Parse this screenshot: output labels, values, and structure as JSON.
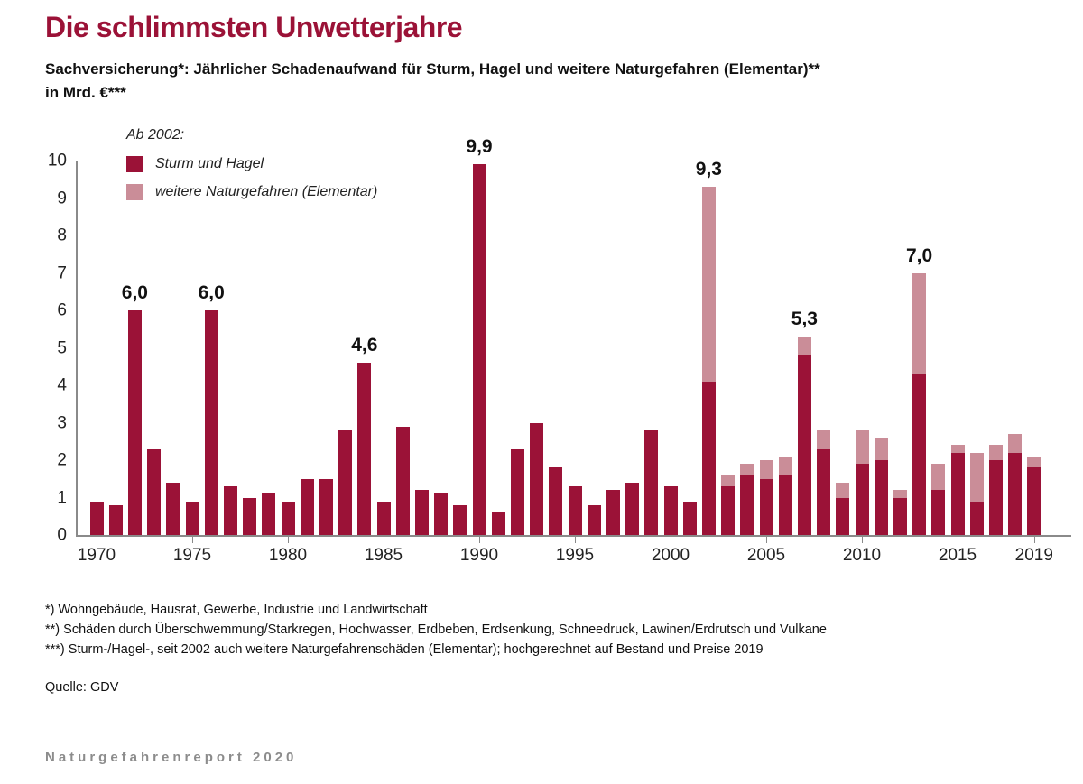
{
  "header": {
    "title": "Die schlimmsten Unwetterjahre",
    "subtitle_line1": "Sachversicherung*: Jährlicher Schadenaufwand für Sturm, Hagel und weitere Naturgefahren (Elementar)**",
    "subtitle_line2": "in Mrd. €***"
  },
  "legend": {
    "heading": "Ab 2002:",
    "items": [
      {
        "label": "Sturm und Hagel",
        "color": "#9b1237"
      },
      {
        "label": "weitere Naturgefahren (Elementar)",
        "color": "#ca8d98"
      }
    ]
  },
  "chart_data": {
    "type": "bar",
    "stacked": true,
    "title": "Die schlimmsten Unwetterjahre",
    "ylabel": "Mrd. €",
    "ylim": [
      0,
      10
    ],
    "yticks": [
      0,
      1,
      2,
      3,
      4,
      5,
      6,
      7,
      8,
      9,
      10
    ],
    "grid": false,
    "legend_position": "top-left",
    "x": [
      1970,
      1971,
      1972,
      1973,
      1974,
      1975,
      1976,
      1977,
      1978,
      1979,
      1980,
      1981,
      1982,
      1983,
      1984,
      1985,
      1986,
      1987,
      1988,
      1989,
      1990,
      1991,
      1992,
      1993,
      1994,
      1995,
      1996,
      1997,
      1998,
      1999,
      2000,
      2001,
      2002,
      2003,
      2004,
      2005,
      2006,
      2007,
      2008,
      2009,
      2010,
      2011,
      2012,
      2013,
      2014,
      2015,
      2016,
      2017,
      2018,
      2019
    ],
    "xticks": [
      1970,
      1975,
      1980,
      1985,
      1990,
      1995,
      2000,
      2005,
      2010,
      2015,
      2019
    ],
    "series": [
      {
        "name": "Sturm und Hagel",
        "color": "#9b1237",
        "values": [
          0.9,
          0.8,
          6.0,
          2.3,
          1.4,
          0.9,
          6.0,
          1.3,
          1.0,
          1.1,
          0.9,
          1.5,
          1.5,
          2.8,
          4.6,
          0.9,
          2.9,
          1.2,
          1.1,
          0.8,
          9.9,
          0.6,
          2.3,
          3.0,
          1.8,
          1.3,
          0.8,
          1.2,
          1.4,
          2.8,
          1.3,
          0.9,
          4.1,
          1.3,
          1.6,
          1.5,
          1.6,
          4.8,
          2.3,
          1.0,
          1.9,
          2.0,
          1.0,
          4.3,
          1.2,
          2.2,
          0.9,
          2.0,
          2.2,
          1.8
        ]
      },
      {
        "name": "weitere Naturgefahren (Elementar)",
        "color": "#ca8d98",
        "values": [
          0,
          0,
          0,
          0,
          0,
          0,
          0,
          0,
          0,
          0,
          0,
          0,
          0,
          0,
          0,
          0,
          0,
          0,
          0,
          0,
          0,
          0,
          0,
          0,
          0,
          0,
          0,
          0,
          0,
          0,
          0,
          0,
          5.2,
          0.3,
          0.3,
          0.5,
          0.5,
          0.5,
          0.5,
          0.4,
          0.9,
          0.6,
          0.2,
          2.7,
          0.7,
          0.2,
          1.3,
          0.4,
          0.5,
          0.3
        ]
      }
    ],
    "annotations": [
      {
        "year": 1972,
        "label": "6,0"
      },
      {
        "year": 1976,
        "label": "6,0"
      },
      {
        "year": 1984,
        "label": "4,6"
      },
      {
        "year": 1990,
        "label": "9,9"
      },
      {
        "year": 2002,
        "label": "9,3"
      },
      {
        "year": 2007,
        "label": "5,3"
      },
      {
        "year": 2013,
        "label": "7,0"
      }
    ]
  },
  "footnotes": {
    "line1": "*) Wohngebäude, Hausrat, Gewerbe, Industrie und Landwirtschaft",
    "line2": "**) Schäden durch Überschwemmung/Starkregen, Hochwasser, Erdbeben, Erdsenkung, Schneedruck, Lawinen/Erdrutsch und Vulkane",
    "line3": "***) Sturm-/Hagel-, seit 2002 auch weitere Naturgefahrenschäden (Elementar); hochgerechnet auf Bestand und Preise 2019",
    "source": "Quelle: GDV"
  },
  "footer": {
    "report": "Naturgefahrenreport 2020"
  }
}
